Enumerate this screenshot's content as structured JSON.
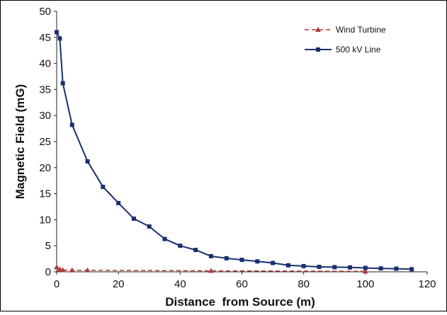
{
  "chart_data": {
    "type": "line",
    "title": "",
    "xlabel": "Distance  from Source (m)",
    "ylabel": "Magnetic Field (mG)",
    "xlim": [
      0,
      120
    ],
    "ylim": [
      0,
      50
    ],
    "x_ticks": [
      0,
      20,
      40,
      60,
      80,
      100,
      120
    ],
    "y_ticks": [
      0,
      5,
      10,
      15,
      20,
      25,
      30,
      35,
      40,
      45,
      50
    ],
    "grid": false,
    "legend_position": "top-right",
    "series": [
      {
        "name": "Wind Turbine",
        "color": "#b03a3a",
        "line_style": "dashed",
        "marker": "triangle",
        "x": [
          0,
          1,
          2,
          5,
          10,
          50,
          100
        ],
        "y": [
          0.9,
          0.5,
          0.35,
          0.3,
          0.3,
          0.2,
          0.1
        ]
      },
      {
        "name": "500 kV Line",
        "color": "#1a2f6e",
        "line_style": "solid",
        "marker": "square",
        "x": [
          0,
          1,
          2,
          5,
          10,
          15,
          20,
          25,
          30,
          35,
          40,
          45,
          50,
          55,
          60,
          65,
          70,
          75,
          80,
          85,
          90,
          95,
          100,
          105,
          110,
          115
        ],
        "y": [
          46,
          44.8,
          36.2,
          28.2,
          21.2,
          16.3,
          13.2,
          10.2,
          8.7,
          6.3,
          5.0,
          4.2,
          3.0,
          2.6,
          2.3,
          2.0,
          1.7,
          1.25,
          1.1,
          0.95,
          0.9,
          0.85,
          0.75,
          0.65,
          0.6,
          0.5
        ]
      }
    ]
  }
}
